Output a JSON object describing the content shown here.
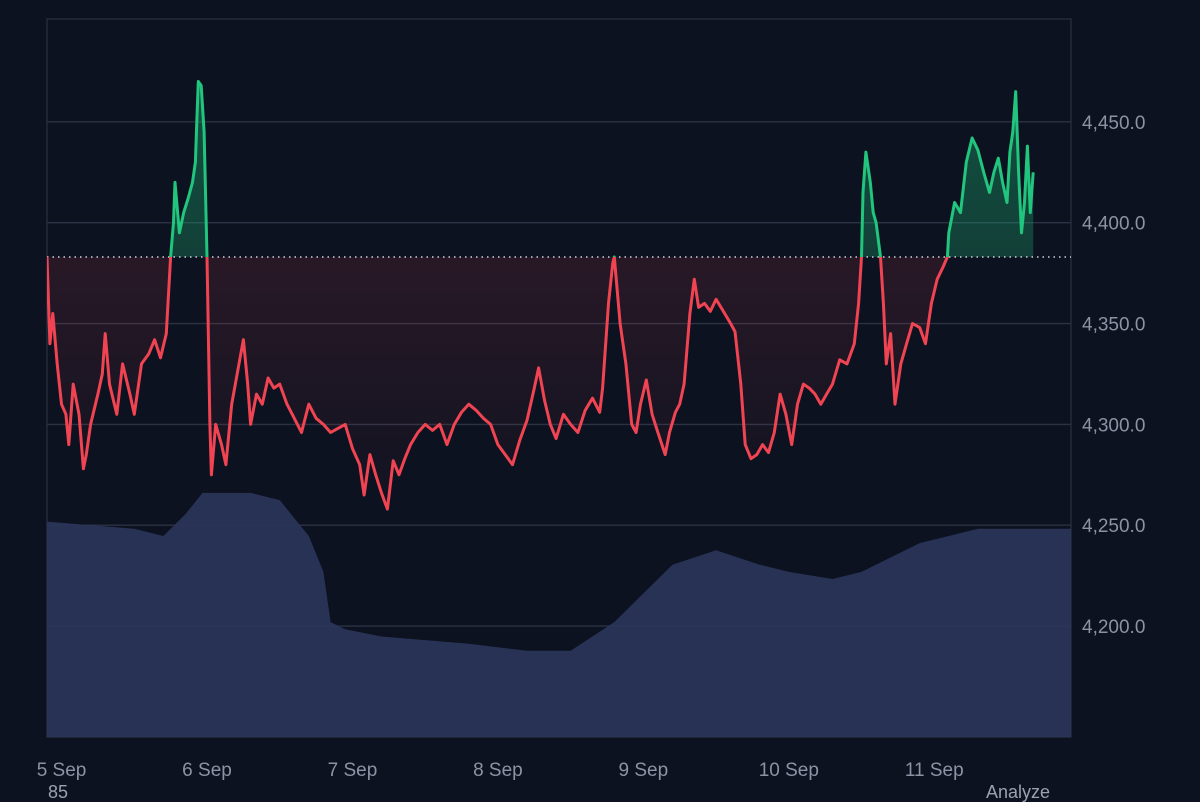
{
  "chart_data": {
    "type": "area",
    "xlabel": "",
    "ylabel": "",
    "x_ticks": [
      "5 Sep",
      "6 Sep",
      "7 Sep",
      "8 Sep",
      "9 Sep",
      "10 Sep",
      "11 Sep"
    ],
    "y_ticks": [
      "4,450.0",
      "4,400.0",
      "4,350.0",
      "4,300.0",
      "4,250.0",
      "4,200.0"
    ],
    "ylim": [
      4145,
      4501
    ],
    "xlim": [
      -0.1,
      6.94
    ],
    "baseline": 4383,
    "colors": {
      "above": "#22c57d",
      "below": "#f04452",
      "volume": "#2a3558",
      "background": "#0c1220"
    },
    "series": [
      {
        "values": [
          [
            -0.1,
            4383
          ],
          [
            -0.08,
            4340
          ],
          [
            -0.06,
            4355
          ],
          [
            -0.03,
            4330
          ],
          [
            0.0,
            4310
          ],
          [
            0.03,
            4305
          ],
          [
            0.05,
            4290
          ],
          [
            0.08,
            4320
          ],
          [
            0.12,
            4305
          ],
          [
            0.15,
            4278
          ],
          [
            0.17,
            4285
          ],
          [
            0.2,
            4300
          ],
          [
            0.25,
            4315
          ],
          [
            0.28,
            4325
          ],
          [
            0.3,
            4345
          ],
          [
            0.33,
            4320
          ],
          [
            0.38,
            4305
          ],
          [
            0.42,
            4330
          ],
          [
            0.47,
            4315
          ],
          [
            0.5,
            4305
          ],
          [
            0.55,
            4330
          ],
          [
            0.6,
            4335
          ],
          [
            0.64,
            4342
          ],
          [
            0.68,
            4333
          ],
          [
            0.72,
            4345
          ],
          [
            0.75,
            4383
          ],
          [
            0.77,
            4400
          ],
          [
            0.78,
            4420
          ],
          [
            0.81,
            4395
          ],
          [
            0.84,
            4405
          ],
          [
            0.87,
            4412
          ],
          [
            0.9,
            4420
          ],
          [
            0.92,
            4430
          ],
          [
            0.93,
            4450
          ],
          [
            0.94,
            4470
          ],
          [
            0.96,
            4468
          ],
          [
            0.98,
            4445
          ],
          [
            1.0,
            4383
          ],
          [
            1.02,
            4300
          ],
          [
            1.03,
            4275
          ],
          [
            1.06,
            4300
          ],
          [
            1.1,
            4290
          ],
          [
            1.13,
            4280
          ],
          [
            1.17,
            4310
          ],
          [
            1.22,
            4330
          ],
          [
            1.25,
            4342
          ],
          [
            1.28,
            4320
          ],
          [
            1.3,
            4300
          ],
          [
            1.34,
            4315
          ],
          [
            1.38,
            4310
          ],
          [
            1.42,
            4323
          ],
          [
            1.46,
            4318
          ],
          [
            1.5,
            4320
          ],
          [
            1.55,
            4310
          ],
          [
            1.6,
            4303
          ],
          [
            1.65,
            4296
          ],
          [
            1.7,
            4310
          ],
          [
            1.75,
            4303
          ],
          [
            1.8,
            4300
          ],
          [
            1.85,
            4296
          ],
          [
            1.9,
            4298
          ],
          [
            1.95,
            4300
          ],
          [
            2.0,
            4288
          ],
          [
            2.05,
            4280
          ],
          [
            2.08,
            4265
          ],
          [
            2.12,
            4285
          ],
          [
            2.16,
            4275
          ],
          [
            2.2,
            4266
          ],
          [
            2.24,
            4258
          ],
          [
            2.28,
            4282
          ],
          [
            2.32,
            4275
          ],
          [
            2.36,
            4283
          ],
          [
            2.4,
            4290
          ],
          [
            2.45,
            4296
          ],
          [
            2.5,
            4300
          ],
          [
            2.55,
            4297
          ],
          [
            2.6,
            4300
          ],
          [
            2.65,
            4290
          ],
          [
            2.7,
            4300
          ],
          [
            2.75,
            4306
          ],
          [
            2.8,
            4310
          ],
          [
            2.85,
            4307
          ],
          [
            2.9,
            4303
          ],
          [
            2.95,
            4300
          ],
          [
            3.0,
            4290
          ],
          [
            3.05,
            4285
          ],
          [
            3.1,
            4280
          ],
          [
            3.15,
            4292
          ],
          [
            3.2,
            4302
          ],
          [
            3.25,
            4318
          ],
          [
            3.28,
            4328
          ],
          [
            3.32,
            4312
          ],
          [
            3.36,
            4300
          ],
          [
            3.4,
            4293
          ],
          [
            3.45,
            4305
          ],
          [
            3.5,
            4300
          ],
          [
            3.55,
            4296
          ],
          [
            3.6,
            4307
          ],
          [
            3.65,
            4313
          ],
          [
            3.7,
            4306
          ],
          [
            3.72,
            4318
          ],
          [
            3.76,
            4360
          ],
          [
            3.79,
            4380
          ],
          [
            3.8,
            4383
          ],
          [
            3.84,
            4350
          ],
          [
            3.88,
            4330
          ],
          [
            3.92,
            4300
          ],
          [
            3.95,
            4296
          ],
          [
            3.98,
            4310
          ],
          [
            4.02,
            4322
          ],
          [
            4.06,
            4305
          ],
          [
            4.1,
            4296
          ],
          [
            4.15,
            4285
          ],
          [
            4.18,
            4296
          ],
          [
            4.22,
            4306
          ],
          [
            4.25,
            4310
          ],
          [
            4.28,
            4320
          ],
          [
            4.32,
            4355
          ],
          [
            4.35,
            4372
          ],
          [
            4.38,
            4358
          ],
          [
            4.42,
            4360
          ],
          [
            4.46,
            4356
          ],
          [
            4.5,
            4362
          ],
          [
            4.55,
            4356
          ],
          [
            4.6,
            4350
          ],
          [
            4.63,
            4346
          ],
          [
            4.67,
            4320
          ],
          [
            4.7,
            4290
          ],
          [
            4.74,
            4283
          ],
          [
            4.78,
            4285
          ],
          [
            4.82,
            4290
          ],
          [
            4.86,
            4286
          ],
          [
            4.9,
            4296
          ],
          [
            4.94,
            4315
          ],
          [
            4.98,
            4305
          ],
          [
            5.02,
            4290
          ],
          [
            5.06,
            4310
          ],
          [
            5.1,
            4320
          ],
          [
            5.14,
            4318
          ],
          [
            5.18,
            4315
          ],
          [
            5.22,
            4310
          ],
          [
            5.26,
            4315
          ],
          [
            5.3,
            4320
          ],
          [
            5.35,
            4332
          ],
          [
            5.4,
            4330
          ],
          [
            5.45,
            4340
          ],
          [
            5.48,
            4360
          ],
          [
            5.5,
            4383
          ],
          [
            5.51,
            4415
          ],
          [
            5.53,
            4435
          ],
          [
            5.56,
            4420
          ],
          [
            5.58,
            4405
          ],
          [
            5.6,
            4400
          ],
          [
            5.63,
            4383
          ],
          [
            5.65,
            4360
          ],
          [
            5.67,
            4330
          ],
          [
            5.7,
            4345
          ],
          [
            5.73,
            4310
          ],
          [
            5.77,
            4330
          ],
          [
            5.81,
            4340
          ],
          [
            5.85,
            4350
          ],
          [
            5.9,
            4348
          ],
          [
            5.94,
            4340
          ],
          [
            5.98,
            4360
          ],
          [
            6.02,
            4372
          ],
          [
            6.06,
            4378
          ],
          [
            6.09,
            4383
          ],
          [
            6.1,
            4395
          ],
          [
            6.14,
            4410
          ],
          [
            6.18,
            4405
          ],
          [
            6.22,
            4430
          ],
          [
            6.26,
            4442
          ],
          [
            6.3,
            4436
          ],
          [
            6.34,
            4425
          ],
          [
            6.38,
            4415
          ],
          [
            6.41,
            4425
          ],
          [
            6.44,
            4432
          ],
          [
            6.47,
            4420
          ],
          [
            6.5,
            4410
          ],
          [
            6.52,
            4435
          ],
          [
            6.54,
            4445
          ],
          [
            6.56,
            4465
          ],
          [
            6.58,
            4425
          ],
          [
            6.6,
            4395
          ],
          [
            6.62,
            4410
          ],
          [
            6.64,
            4438
          ],
          [
            6.66,
            4405
          ],
          [
            6.68,
            4425
          ]
        ]
      }
    ],
    "volume": {
      "values": [
        [
          -0.1,
          0.3
        ],
        [
          0.5,
          0.29
        ],
        [
          0.7,
          0.28
        ],
        [
          0.85,
          0.31
        ],
        [
          0.97,
          0.34
        ],
        [
          1.1,
          0.34
        ],
        [
          1.3,
          0.34
        ],
        [
          1.5,
          0.33
        ],
        [
          1.7,
          0.28
        ],
        [
          1.8,
          0.23
        ],
        [
          1.85,
          0.16
        ],
        [
          1.95,
          0.15
        ],
        [
          2.2,
          0.14
        ],
        [
          2.8,
          0.13
        ],
        [
          3.2,
          0.12
        ],
        [
          3.5,
          0.12
        ],
        [
          3.8,
          0.16
        ],
        [
          4.0,
          0.2
        ],
        [
          4.2,
          0.24
        ],
        [
          4.5,
          0.26
        ],
        [
          4.8,
          0.24
        ],
        [
          5.0,
          0.23
        ],
        [
          5.3,
          0.22
        ],
        [
          5.5,
          0.23
        ],
        [
          5.7,
          0.25
        ],
        [
          5.9,
          0.27
        ],
        [
          6.1,
          0.28
        ],
        [
          6.3,
          0.29
        ],
        [
          6.5,
          0.29
        ],
        [
          6.68,
          0.29
        ]
      ]
    }
  },
  "footer": {
    "left_text": "85",
    "right_text": "Analyze"
  }
}
